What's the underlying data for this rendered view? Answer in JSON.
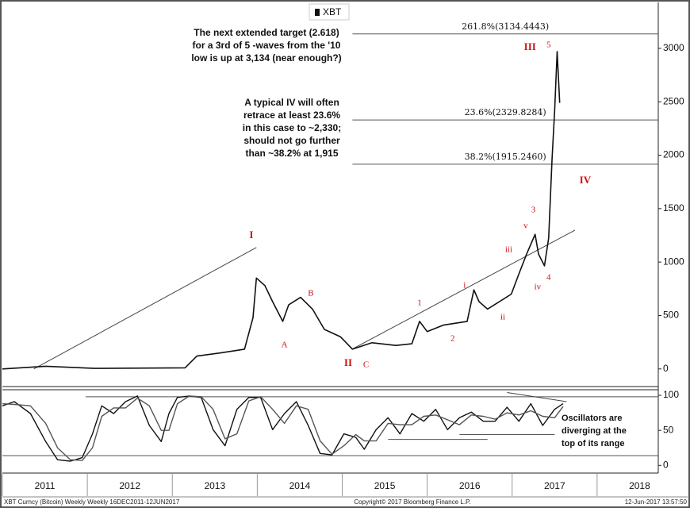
{
  "chart_data": [
    {
      "type": "line",
      "legend": "XBT",
      "xlim": [
        2011,
        2018.72
      ],
      "xticks": [
        2011,
        2012,
        2013,
        2014,
        2015,
        2016,
        2017,
        2018
      ],
      "ylim": [
        -165,
        3430
      ],
      "yticks": [
        0,
        500,
        1000,
        1500,
        2000,
        2500,
        3000
      ],
      "grid": false,
      "x": [
        2011.0,
        2011.51,
        2012.08,
        2013.15,
        2013.29,
        2013.57,
        2013.85,
        2013.95,
        2013.99,
        2014.09,
        2014.18,
        2014.3,
        2014.37,
        2014.51,
        2014.65,
        2014.79,
        2014.98,
        2015.12,
        2015.35,
        2015.63,
        2015.82,
        2015.91,
        2016.0,
        2016.19,
        2016.47,
        2016.55,
        2016.61,
        2016.71,
        2016.85,
        2016.99,
        2017.08,
        2017.17,
        2017.27,
        2017.31,
        2017.38,
        2017.43,
        2017.47,
        2017.5,
        2017.53,
        2017.56
      ],
      "series": [
        {
          "name": "XBT",
          "color": "#111111",
          "values": [
            0,
            25,
            5,
            10,
            120,
            150,
            185,
            480,
            850,
            780,
            630,
            445,
            600,
            670,
            560,
            370,
            300,
            185,
            245,
            220,
            235,
            445,
            350,
            410,
            445,
            740,
            630,
            560,
            630,
            700,
            890,
            1075,
            1260,
            1075,
            965,
            1225,
            1970,
            2410,
            2970,
            2490
          ]
        }
      ],
      "reference_lines": [
        {
          "value": 3134.4443,
          "label": "261.8%(3134.4443)",
          "x": [
            2015.12,
            2018.72
          ]
        },
        {
          "value": 2329.8284,
          "label": "23.6%(2329.8284)",
          "x": [
            2015.12,
            2018.72
          ]
        },
        {
          "value": 1915.246,
          "label": "38.2%(1915.2460)",
          "x": [
            2015.12,
            2018.72
          ]
        }
      ],
      "trend_lines": [
        {
          "x": [
            2011.37,
            2013.99
          ],
          "y": [
            0,
            1136
          ]
        },
        {
          "x": [
            2015.12,
            2017.74
          ],
          "y": [
            186,
            1299
          ]
        }
      ],
      "annotation_color": "#d01010",
      "annotations": [
        {
          "text": "I",
          "x": 2013.93,
          "y": 1247
        },
        {
          "text": "A",
          "x": 2014.32,
          "y": 223
        },
        {
          "text": "B",
          "x": 2014.63,
          "y": 705
        },
        {
          "text": "II",
          "x": 2015.07,
          "y": 52
        },
        {
          "text": "C",
          "x": 2015.28,
          "y": 37
        },
        {
          "text": "1",
          "x": 2015.91,
          "y": 616
        },
        {
          "text": "2",
          "x": 2016.3,
          "y": 282
        },
        {
          "text": "i",
          "x": 2016.44,
          "y": 780
        },
        {
          "text": "ii",
          "x": 2016.89,
          "y": 483
        },
        {
          "text": "iii",
          "x": 2016.96,
          "y": 1114
        },
        {
          "text": "iv",
          "x": 2017.3,
          "y": 765
        },
        {
          "text": "v",
          "x": 2017.16,
          "y": 1336
        },
        {
          "text": "3",
          "x": 2017.25,
          "y": 1485
        },
        {
          "text": "4",
          "x": 2017.43,
          "y": 854
        },
        {
          "text": "III",
          "x": 2017.21,
          "y": 3007
        },
        {
          "text": "5",
          "x": 2017.43,
          "y": 3029
        },
        {
          "text": "IV",
          "x": 2017.86,
          "y": 1759
        }
      ],
      "notes": [
        [
          "The  next extended target (2.618)",
          "for a 3rd of 5 -waves from the '10",
          "low is up at 3,134 (near enough?)"
        ],
        [
          "A typical IV will often",
          "retrace at least 23.6%",
          "in this case to ~2,330;",
          "should not go further",
          "than ~38.2%  at  1,915"
        ]
      ]
    },
    {
      "type": "line",
      "xlim": [
        2011,
        2018.72
      ],
      "ylim": [
        -11,
        108
      ],
      "yticks": [
        0,
        50,
        100
      ],
      "x": [
        2011.0,
        2011.14,
        2011.33,
        2011.51,
        2011.65,
        2011.8,
        2011.94,
        2012.06,
        2012.17,
        2012.31,
        2012.45,
        2012.59,
        2012.73,
        2012.87,
        2012.96,
        2013.06,
        2013.2,
        2013.34,
        2013.48,
        2013.62,
        2013.76,
        2013.9,
        2014.04,
        2014.18,
        2014.32,
        2014.46,
        2014.6,
        2014.74,
        2014.88,
        2015.02,
        2015.16,
        2015.26,
        2015.4,
        2015.54,
        2015.68,
        2015.82,
        2015.96,
        2016.1,
        2016.24,
        2016.38,
        2016.52,
        2016.66,
        2016.8,
        2016.94,
        2017.08,
        2017.22,
        2017.36,
        2017.5,
        2017.6
      ],
      "series": [
        {
          "color": "#111111",
          "values": [
            85,
            91,
            74,
            34,
            8,
            6,
            11,
            45,
            85,
            74,
            91,
            99,
            57,
            34,
            74,
            97,
            99,
            97,
            51,
            28,
            80,
            97,
            97,
            51,
            74,
            91,
            57,
            17,
            15,
            45,
            40,
            23,
            51,
            68,
            45,
            74,
            63,
            80,
            51,
            68,
            76,
            63,
            63,
            83,
            63,
            88,
            57,
            80,
            88
          ]
        },
        {
          "color": "#555555",
          "values": [
            88,
            87,
            85,
            60,
            25,
            8,
            7,
            25,
            70,
            82,
            82,
            96,
            85,
            50,
            50,
            88,
            99,
            98,
            80,
            38,
            45,
            92,
            98,
            80,
            60,
            85,
            80,
            35,
            16,
            28,
            44,
            35,
            35,
            60,
            58,
            58,
            70,
            72,
            65,
            58,
            72,
            70,
            66,
            75,
            72,
            78,
            70,
            68,
            84
          ]
        }
      ],
      "reference_lines": [
        {
          "value": 98,
          "x": [
            2011.98,
            2018.72
          ]
        },
        {
          "value": 14,
          "x": [
            2011.0,
            2018.72
          ]
        },
        {
          "value": 37,
          "x": [
            2015.54,
            2016.71
          ]
        },
        {
          "value": 44,
          "x": [
            2016.38,
            2017.5
          ]
        }
      ],
      "trend_lines": [
        {
          "x": [
            2016.94,
            2017.64
          ],
          "y": [
            104,
            91
          ]
        }
      ],
      "notes": [
        [
          "Oscillators are",
          "diverging at the",
          "top of its range"
        ]
      ]
    }
  ],
  "footer": [
    "XBT Curncy (Bitcoin) Weekly  Weekly 16DEC2011-12JUN2017",
    "Copyright© 2017 Bloomberg Finance L.P.",
    "12-Jun-2017 13:57:50"
  ]
}
